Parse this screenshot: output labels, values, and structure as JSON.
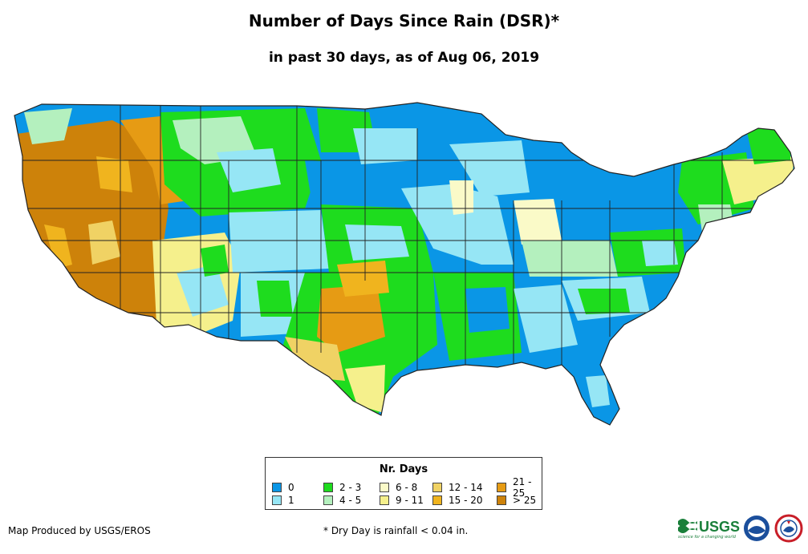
{
  "title": "Number of Days Since Rain (DSR)*",
  "subtitle": "in past 30 days, as of Aug 06, 2019",
  "legend": {
    "title": "Nr. Days",
    "items": [
      {
        "label": "0",
        "color": "#0A96E6"
      },
      {
        "label": "1",
        "color": "#96E6F5"
      },
      {
        "label": "2 - 3",
        "color": "#1EDC1E"
      },
      {
        "label": "4 - 5",
        "color": "#B4F0BE"
      },
      {
        "label": "6 - 8",
        "color": "#FAFAC8"
      },
      {
        "label": "9 - 11",
        "color": "#F5F08C"
      },
      {
        "label": "12 - 14",
        "color": "#F0D264"
      },
      {
        "label": "15 - 20",
        "color": "#F0B41E"
      },
      {
        "label": "21 - 25",
        "color": "#E69B14"
      },
      {
        "label": "> 25",
        "color": "#CD820A"
      }
    ]
  },
  "credit": "Map Produced by USGS/EROS",
  "footnote": "* Dry Day is rainfall < 0.04 in.",
  "logos": {
    "usgs_text": "USGS",
    "usgs_tagline": "science for a changing world"
  }
}
